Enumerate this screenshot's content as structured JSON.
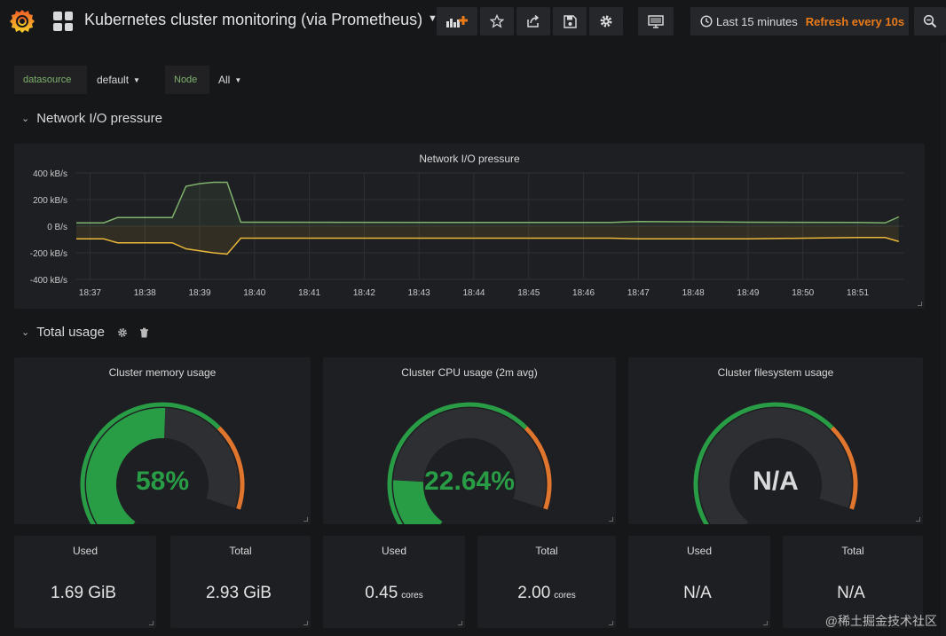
{
  "header": {
    "title": "Kubernetes cluster monitoring (via Prometheus)",
    "time_range": "Last 15 minutes",
    "refresh": "Refresh every 10s"
  },
  "variables": [
    {
      "label": "datasource",
      "value": "default"
    },
    {
      "label": "Node",
      "value": "All"
    }
  ],
  "rows": {
    "network": "Network I/O pressure",
    "total": "Total usage"
  },
  "network_panel": {
    "title": "Network I/O pressure"
  },
  "chart_data": {
    "type": "line",
    "title": "Network I/O pressure",
    "yticks": [
      "400 kB/s",
      "200 kB/s",
      "0 B/s",
      "-200 kB/s",
      "-400 kB/s"
    ],
    "ylim": [
      -400,
      400
    ],
    "xticks": [
      "18:37",
      "18:38",
      "18:39",
      "18:40",
      "18:41",
      "18:42",
      "18:43",
      "18:44",
      "18:45",
      "18:46",
      "18:47",
      "18:48",
      "18:49",
      "18:50",
      "18:51"
    ],
    "grid": true,
    "series": [
      {
        "color": "#7eb26d",
        "x": [
          "18:36:45",
          "18:37:15",
          "18:37:30",
          "18:38:00",
          "18:38:30",
          "18:38:45",
          "18:39:00",
          "18:39:15",
          "18:39:30",
          "18:39:45",
          "18:40:00",
          "18:45:00",
          "18:46:30",
          "18:47:00",
          "18:48:00",
          "18:49:00",
          "18:51:00",
          "18:51:30",
          "18:51:45"
        ],
        "y": [
          25,
          25,
          65,
          65,
          65,
          300,
          320,
          330,
          330,
          30,
          30,
          28,
          28,
          35,
          33,
          30,
          28,
          25,
          70
        ]
      },
      {
        "color": "#eab839",
        "x": [
          "18:36:45",
          "18:37:15",
          "18:37:30",
          "18:38:00",
          "18:38:30",
          "18:38:45",
          "18:39:00",
          "18:39:15",
          "18:39:30",
          "18:39:45",
          "18:40:00",
          "18:45:00",
          "18:46:30",
          "18:47:00",
          "18:48:00",
          "18:49:00",
          "18:51:00",
          "18:51:30",
          "18:51:45"
        ],
        "y": [
          -95,
          -95,
          -125,
          -125,
          -125,
          -170,
          -185,
          -200,
          -210,
          -90,
          -90,
          -90,
          -90,
          -95,
          -95,
          -95,
          -85,
          -85,
          -115
        ]
      }
    ]
  },
  "gauges": [
    {
      "title": "Cluster memory usage",
      "value": "58%",
      "fraction": 0.58,
      "value_color": "#299c46"
    },
    {
      "title": "Cluster CPU usage (2m avg)",
      "value": "22.64%",
      "fraction": 0.2264,
      "value_color": "#299c46"
    },
    {
      "title": "Cluster filesystem usage",
      "value": "N/A",
      "fraction": 0,
      "value_color": "#d8d9da"
    }
  ],
  "gauge_colors": {
    "ok": "#299c46",
    "warn": "#e0752d",
    "track": "#2e2f33"
  },
  "stats": [
    {
      "title": "Used",
      "value": "1.69 GiB",
      "unit": ""
    },
    {
      "title": "Total",
      "value": "2.93 GiB",
      "unit": ""
    },
    {
      "title": "Used",
      "value": "0.45",
      "unit": "cores"
    },
    {
      "title": "Total",
      "value": "2.00",
      "unit": "cores"
    },
    {
      "title": "Used",
      "value": "N/A",
      "unit": ""
    },
    {
      "title": "Total",
      "value": "N/A",
      "unit": ""
    }
  ],
  "watermark": "@稀土掘金技术社区",
  "icons": [
    "grafana-logo-icon",
    "dashboard-grid-icon",
    "add-panel-icon",
    "star-icon",
    "share-icon",
    "save-icon",
    "settings-icon",
    "tv-mode-icon",
    "clock-icon",
    "zoom-out-icon",
    "gear-icon",
    "trash-icon"
  ]
}
